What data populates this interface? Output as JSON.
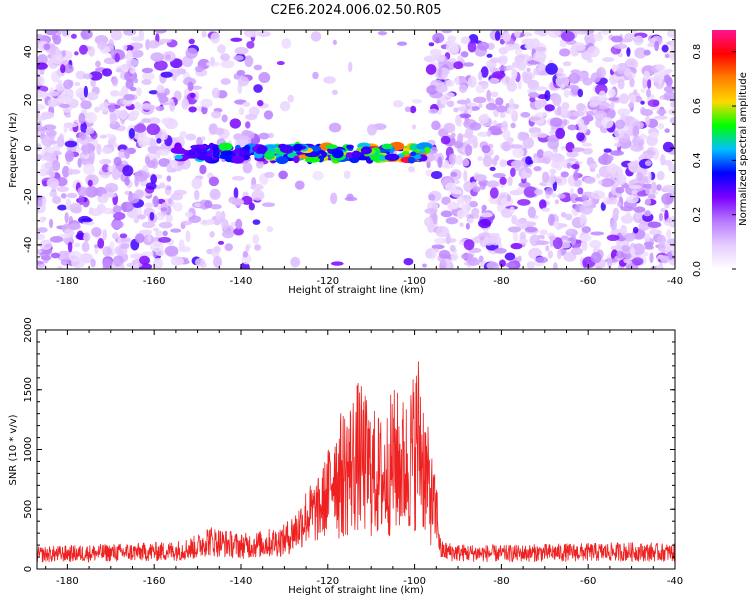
{
  "figure": {
    "title": "C2E6.2024.006.02.50.R05"
  },
  "chart_data": [
    {
      "type": "heatmap",
      "xlabel": "Height of straight line (km)",
      "ylabel": "Frequency (Hz)",
      "xlim": [
        -187,
        -40
      ],
      "ylim": [
        -50,
        49
      ],
      "xticks": [
        -180,
        -160,
        -140,
        -120,
        -100,
        -80,
        -60,
        -40
      ],
      "xtick_labels": [
        "-180",
        "-160",
        "-140",
        "-120",
        "-100",
        "-80",
        "-60",
        "-40"
      ],
      "yticks": [
        40,
        20,
        0,
        -20,
        -40
      ],
      "ytick_labels": [
        "40",
        "20",
        "0",
        "-20",
        "-40"
      ],
      "no_data_gap_km": [
        -133,
        -97
      ],
      "signal_band": {
        "x_range": [
          -155,
          -97
        ],
        "frequency_hz": -2,
        "peak_near_km": -101
      },
      "colorbar": {
        "label": "Normalized spectral amplitude",
        "range": [
          0,
          0.88
        ],
        "ticks": [
          0.0,
          0.2,
          0.4,
          0.6,
          0.8
        ],
        "tick_labels": [
          "0.0",
          "0.2",
          "0.4",
          "0.6",
          "0.8"
        ],
        "colors": [
          "#ffffff",
          "#e6ccff",
          "#b77aff",
          "#7a00ff",
          "#0000ff",
          "#00bfff",
          "#00ff00",
          "#ffd700",
          "#ff7f00",
          "#ff0000",
          "#ff1493"
        ]
      },
      "grid": false
    },
    {
      "type": "line",
      "xlabel": "Height of straight line (km)",
      "ylabel": "SNR (10 * v/v)",
      "xlim": [
        -187,
        -40
      ],
      "ylim": [
        0,
        2000
      ],
      "xticks": [
        -180,
        -160,
        -140,
        -120,
        -100,
        -80,
        -60,
        -40
      ],
      "xtick_labels": [
        "-180",
        "-160",
        "-140",
        "-120",
        "-100",
        "-80",
        "-60",
        "-40"
      ],
      "yticks": [
        0,
        500,
        1000,
        1500,
        2000
      ],
      "ytick_labels": [
        "0",
        "500",
        "1000",
        "1500",
        "2000"
      ],
      "color": "#ee2020",
      "series": [
        {
          "x": [
            -187,
            -180,
            -170,
            -160,
            -155,
            -150,
            -148,
            -140,
            -135,
            -130,
            -127,
            -125,
            -122,
            -120,
            -118,
            -115,
            -113,
            -110,
            -107,
            -105,
            -102,
            -100,
            -99,
            -97,
            -95,
            -94,
            -90,
            -80,
            -70,
            -60,
            -50,
            -40
          ],
          "y": [
            150,
            160,
            170,
            180,
            190,
            230,
            300,
            240,
            260,
            300,
            420,
            550,
            620,
            800,
            1150,
            1300,
            1450,
            1250,
            1150,
            1400,
            1300,
            1550,
            1700,
            1100,
            650,
            190,
            170,
            160,
            170,
            175,
            180,
            170
          ]
        }
      ],
      "grid": false
    }
  ]
}
